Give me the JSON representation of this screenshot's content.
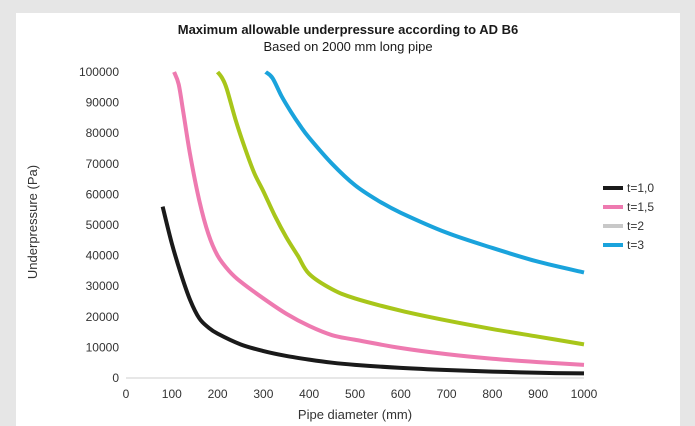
{
  "chart_data": {
    "type": "line",
    "title": "Maximum allowable underpressure according to AD B6",
    "subtitle": "Based on 2000 mm long pipe",
    "xlabel": "Pipe diameter (mm)",
    "ylabel": "Underpressure (Pa)",
    "xlim": [
      0,
      1000
    ],
    "ylim": [
      0,
      100000
    ],
    "x_ticks": [
      "0",
      "100",
      "200",
      "300",
      "400",
      "500",
      "600",
      "700",
      "800",
      "900",
      "1000"
    ],
    "y_ticks": [
      "0",
      "10000",
      "20000",
      "30000",
      "40000",
      "50000",
      "60000",
      "70000",
      "80000",
      "90000",
      "100000"
    ],
    "grid": false,
    "legend_position": "right",
    "series": [
      {
        "name": "t=1,0",
        "color": "#1a1a1a",
        "x": [
          80,
          100,
          120,
          140,
          160,
          180,
          200,
          250,
          300,
          350,
          400,
          450,
          500,
          600,
          700,
          800,
          900,
          1000
        ],
        "y": [
          56000,
          44000,
          34000,
          25500,
          19500,
          16500,
          14500,
          11000,
          8800,
          7200,
          6000,
          5000,
          4300,
          3300,
          2600,
          2100,
          1700,
          1500
        ]
      },
      {
        "name": "t=1,5",
        "color": "#ee7ab0",
        "x": [
          105,
          115,
          125,
          140,
          160,
          180,
          200,
          225,
          250,
          300,
          350,
          400,
          450,
          500,
          600,
          700,
          800,
          900,
          1000
        ],
        "y": [
          100000,
          96000,
          87000,
          73000,
          58000,
          47000,
          40000,
          35000,
          31500,
          26000,
          21000,
          17000,
          14000,
          12500,
          9800,
          7800,
          6300,
          5200,
          4300
        ]
      },
      {
        "name": "t=2",
        "color": "#a8c61a",
        "x": [
          200,
          210,
          220,
          240,
          260,
          280,
          300,
          325,
          350,
          375,
          400,
          450,
          500,
          600,
          700,
          800,
          900,
          1000
        ],
        "y": [
          100000,
          98000,
          94500,
          84000,
          75000,
          67000,
          61000,
          53000,
          46000,
          40000,
          34000,
          29000,
          26000,
          22000,
          18800,
          16000,
          13500,
          11000
        ]
      },
      {
        "name": "t=3",
        "color": "#1aa3dc",
        "x": [
          305,
          320,
          340,
          360,
          380,
          400,
          450,
          500,
          550,
          600,
          700,
          800,
          900,
          1000
        ],
        "y": [
          100000,
          98000,
          92000,
          87000,
          82500,
          78500,
          70000,
          63000,
          58000,
          54000,
          47500,
          42500,
          38000,
          34500
        ]
      }
    ]
  }
}
